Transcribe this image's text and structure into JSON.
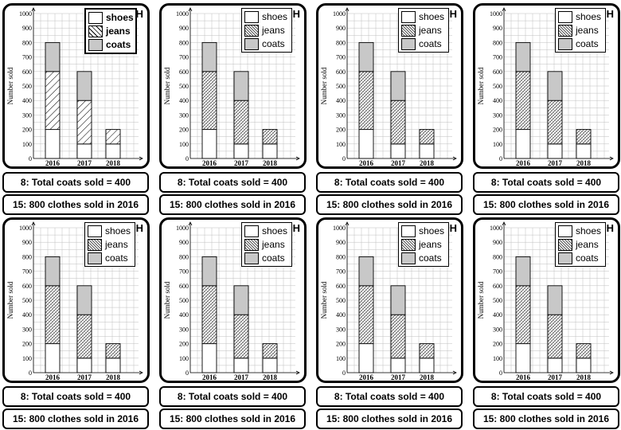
{
  "tag": "H",
  "statements": [
    "8: Total coats sold = 400",
    "15: 800 clothes sold in 2016"
  ],
  "colors": {
    "coats": "#c8c8c8",
    "shoes": "#ffffff",
    "grid": "#bfbfbf",
    "border": "#000000"
  },
  "chart_data": {
    "type": "bar",
    "stacked": true,
    "categories": [
      "2016",
      "2017",
      "2018"
    ],
    "series": [
      {
        "name": "shoes",
        "values": [
          200,
          100,
          100
        ]
      },
      {
        "name": "jeans",
        "values": [
          400,
          300,
          100
        ]
      },
      {
        "name": "coats",
        "values": [
          200,
          200,
          0
        ]
      }
    ],
    "ylabel": "Number sold",
    "ylim": [
      0,
      1000
    ],
    "yticks": [
      "0",
      "100",
      "200",
      "300",
      "400",
      "500",
      "600",
      "700",
      "800",
      "900",
      "1000"
    ],
    "grid": true,
    "legend": "top-right"
  }
}
